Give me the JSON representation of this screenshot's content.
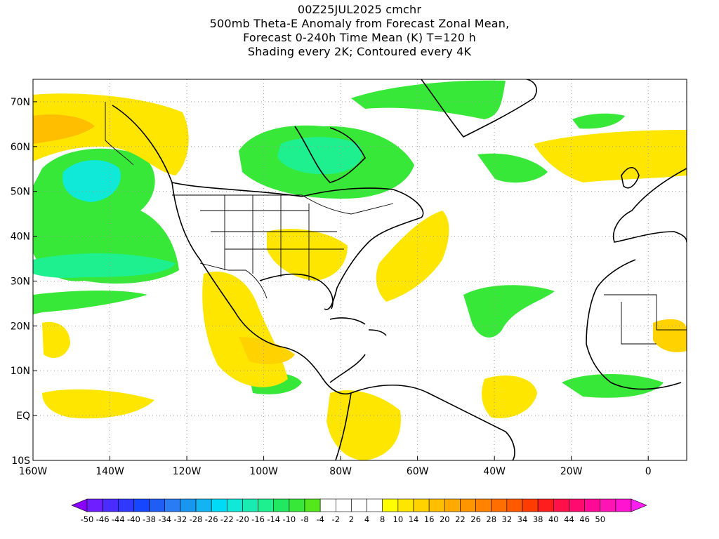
{
  "titles": [
    "00Z25JUL2025 cmchr",
    "500mb Theta-E Anomaly from Forecast Zonal Mean,",
    "Forecast 0-240h Time Mean (K) T=120 h",
    "Shading every 2K; Contoured every 4K"
  ],
  "axes": {
    "lat_labels": [
      {
        "value": 70,
        "text": "70N"
      },
      {
        "value": 60,
        "text": "60N"
      },
      {
        "value": 50,
        "text": "50N"
      },
      {
        "value": 40,
        "text": "40N"
      },
      {
        "value": 30,
        "text": "30N"
      },
      {
        "value": 20,
        "text": "20N"
      },
      {
        "value": 10,
        "text": "10N"
      },
      {
        "value": 0,
        "text": "EQ"
      },
      {
        "value": -10,
        "text": "10S"
      }
    ],
    "lon_labels": [
      {
        "value": -160,
        "text": "160W"
      },
      {
        "value": -140,
        "text": "140W"
      },
      {
        "value": -120,
        "text": "120W"
      },
      {
        "value": -100,
        "text": "100W"
      },
      {
        "value": -80,
        "text": "80W"
      },
      {
        "value": -60,
        "text": "60W"
      },
      {
        "value": -40,
        "text": "40W"
      },
      {
        "value": -20,
        "text": "20W"
      },
      {
        "value": 0,
        "text": "0"
      }
    ],
    "lon_range": [
      -160,
      10
    ],
    "lat_range": [
      -10,
      75
    ],
    "grid": "dotted"
  },
  "colorbar": {
    "colors": [
      "#8a00ff",
      "#6e1eff",
      "#4b2cff",
      "#2e38ff",
      "#1646ff",
      "#1e5ef5",
      "#2a7cf5",
      "#1896f0",
      "#12b4f2",
      "#00dcf8",
      "#10e8d8",
      "#18ecb0",
      "#1ef090",
      "#20e860",
      "#38e838",
      "#54e81c",
      "#ffffff",
      "#ffffff",
      "#ffffff",
      "#ffffff",
      "#ffff00",
      "#ffe600",
      "#ffd200",
      "#ffbe00",
      "#ffaa00",
      "#ff9600",
      "#ff8200",
      "#ff6e00",
      "#ff5a00",
      "#ff3c00",
      "#ff1e1e",
      "#ff1048",
      "#ff0a6e",
      "#ff0a96",
      "#ff14b4",
      "#ff14d2",
      "#ff1ef0"
    ],
    "labels": [
      "-50",
      "-46",
      "-44",
      "-40",
      "-38",
      "-34",
      "-32",
      "-28",
      "-26",
      "-22",
      "-20",
      "-16",
      "-14",
      "-10",
      "-8",
      "-4",
      "-2",
      "2",
      "4",
      "8",
      "10",
      "14",
      "16",
      "20",
      "22",
      "26",
      "28",
      "32",
      "34",
      "38",
      "40",
      "44",
      "46",
      "50"
    ]
  }
}
